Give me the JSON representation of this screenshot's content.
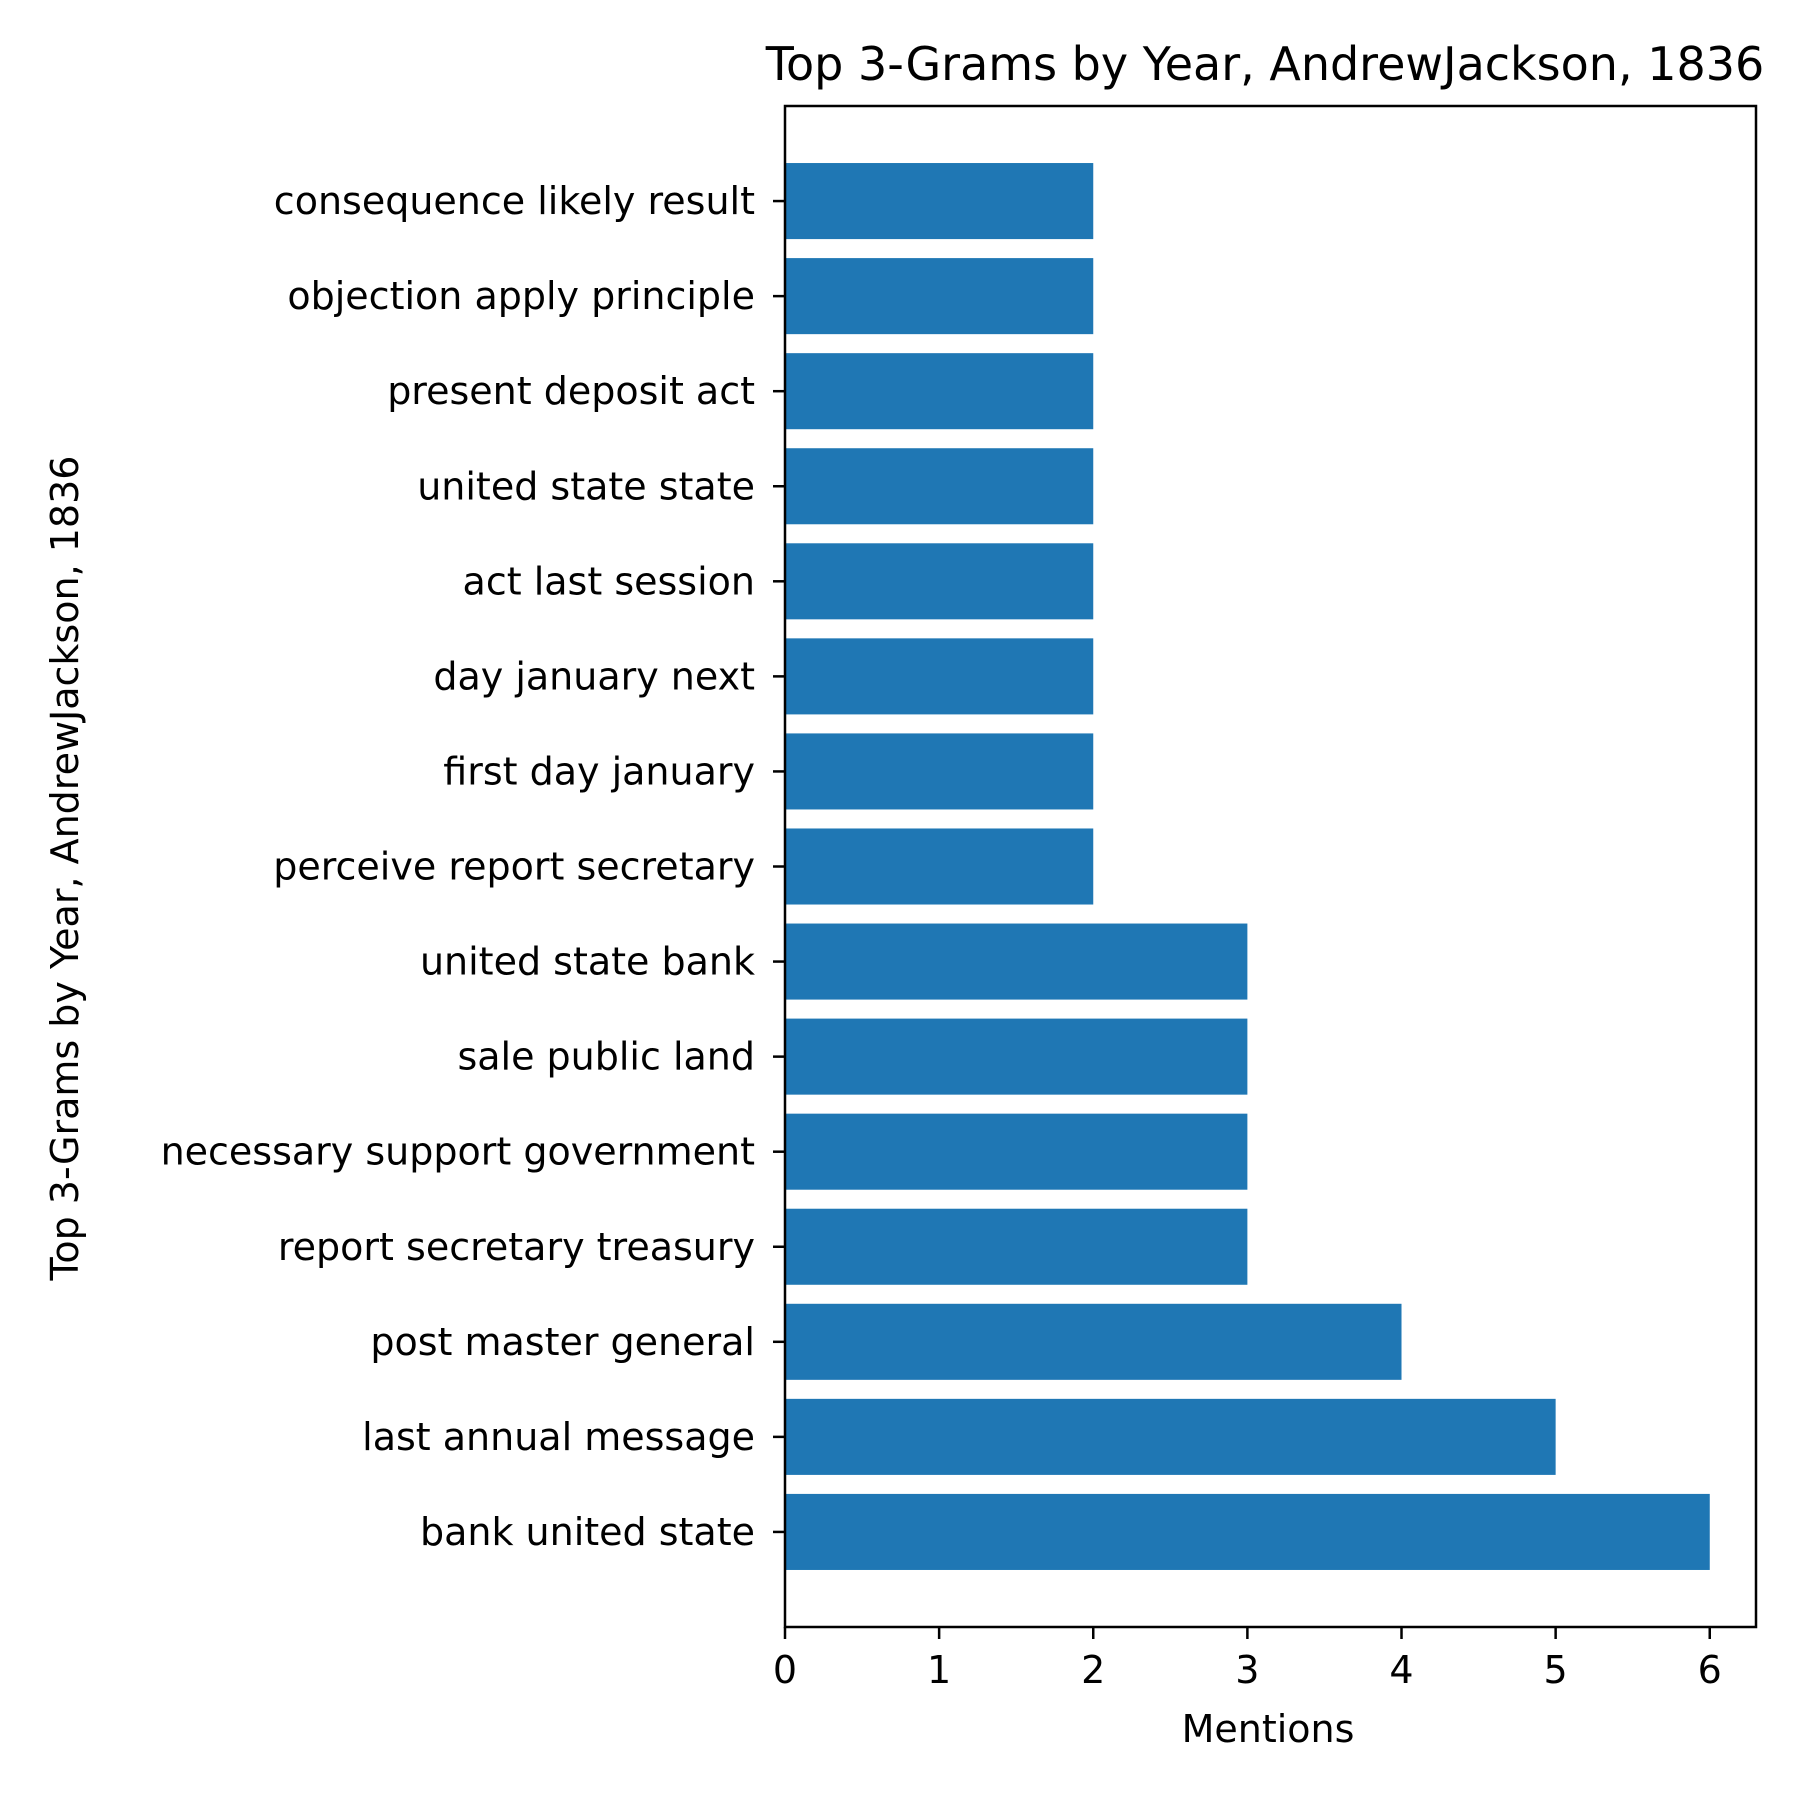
{
  "chart_data": {
    "type": "bar",
    "orientation": "horizontal",
    "title": "Top 3-Grams by Year, AndrewJackson, 1836",
    "xlabel": "Mentions",
    "ylabel": "Top 3-Grams by Year, AndrewJackson, 1836",
    "categories": [
      "bank united state",
      "last annual message",
      "post master general",
      "report secretary treasury",
      "necessary support government",
      "sale public land",
      "united state bank",
      "perceive report secretary",
      "first day january",
      "day january next",
      "act last session",
      "united state state",
      "present deposit act",
      "objection apply principle",
      "consequence likely result"
    ],
    "values": [
      6,
      5,
      4,
      3,
      3,
      3,
      3,
      2,
      2,
      2,
      2,
      2,
      2,
      2,
      2
    ],
    "xlim": [
      0,
      6.3
    ],
    "xticks": [
      "0",
      "1",
      "2",
      "3",
      "4",
      "5",
      "6"
    ],
    "grid": false,
    "bar_color": "#1f77b4"
  }
}
